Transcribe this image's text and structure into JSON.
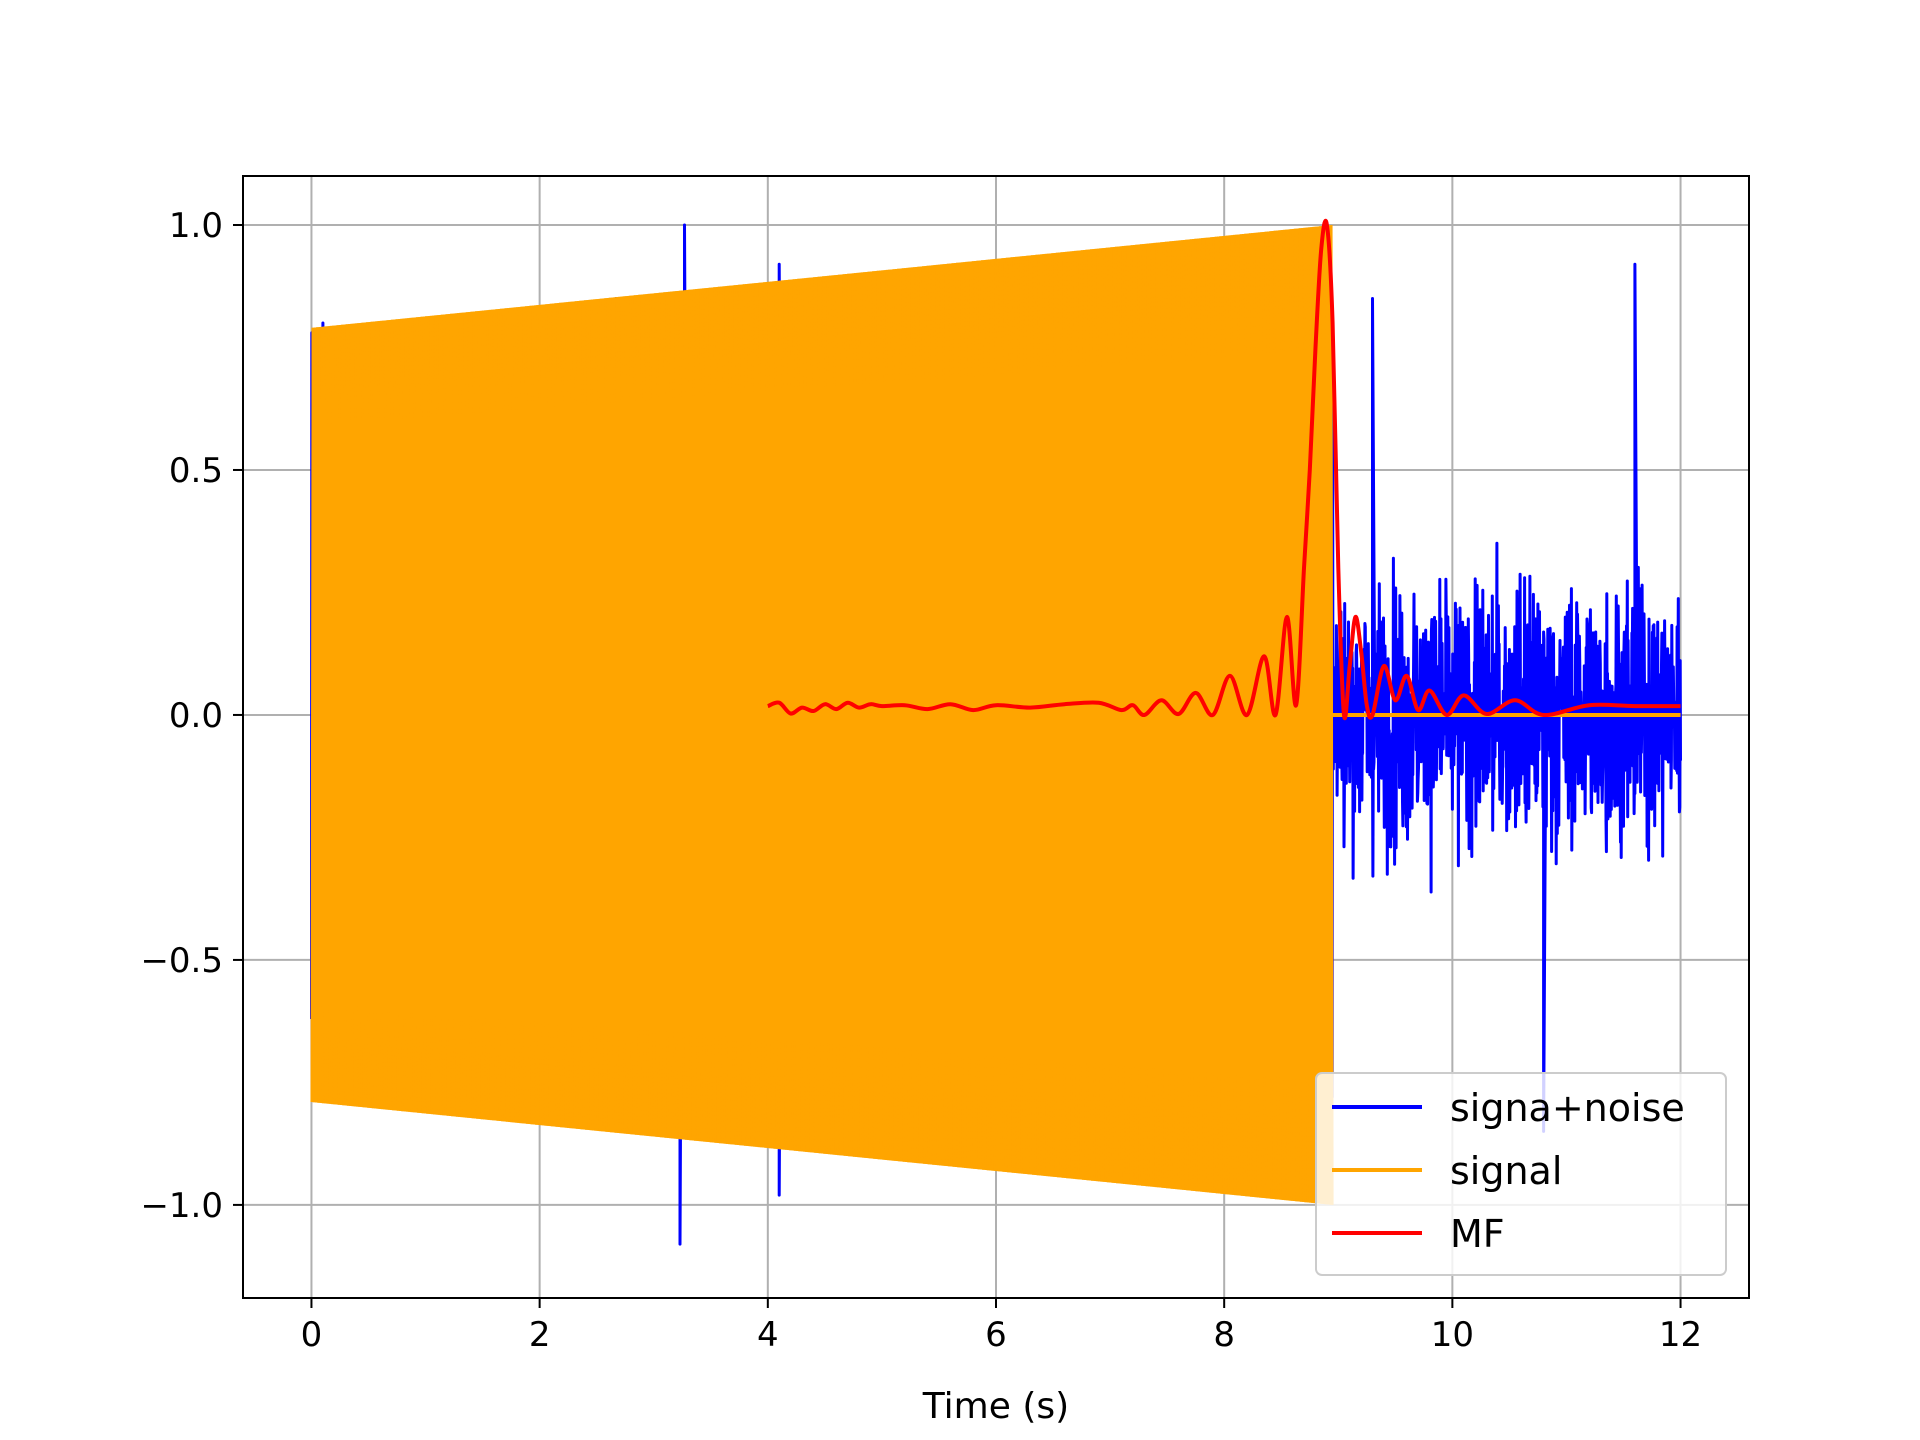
{
  "chart_data": {
    "type": "line",
    "title": "",
    "xlabel": "Time (s)",
    "ylabel": "",
    "xlim": [
      -0.6,
      12.6
    ],
    "ylim": [
      -1.19,
      1.1
    ],
    "xticks": [
      0,
      2,
      4,
      6,
      8,
      10,
      12
    ],
    "yticks": [
      -1.0,
      -0.5,
      0.0,
      0.5,
      1.0
    ],
    "xtick_labels": [
      "0",
      "2",
      "4",
      "6",
      "8",
      "10",
      "12"
    ],
    "ytick_labels": [
      "−1.0",
      "−0.5",
      "0.0",
      "0.5",
      "1.0"
    ],
    "grid": true,
    "legend_position": "lower-right",
    "colors": {
      "noise": "#0000ff",
      "signal": "#ffa500",
      "mf": "#ff0000"
    },
    "series": [
      {
        "name": "signa+noise",
        "color": "#0000ff",
        "kind": "noise",
        "x_range": [
          0,
          12
        ],
        "envelope_peaks": [
          [
            0.1,
            0.8
          ],
          [
            2.67,
            0.85
          ],
          [
            3.27,
            1.0
          ],
          [
            3.23,
            -1.08
          ],
          [
            4.1,
            0.92
          ],
          [
            4.1,
            -0.98
          ],
          [
            4.85,
            -0.9
          ],
          [
            9.3,
            0.85
          ],
          [
            10.8,
            -0.85
          ],
          [
            11.6,
            0.92
          ]
        ]
      },
      {
        "name": "signal",
        "color": "#ffa500",
        "kind": "chirp",
        "x_range": [
          0,
          8.95
        ],
        "amplitude_start": 0.79,
        "amplitude_end": 1.0,
        "zero_after": 12
      },
      {
        "name": "MF",
        "color": "#ff0000",
        "kind": "line",
        "x": [
          4.0,
          4.1,
          4.2,
          4.3,
          4.4,
          4.5,
          4.6,
          4.7,
          4.8,
          4.9,
          5.0,
          5.2,
          5.4,
          5.6,
          5.8,
          6.0,
          6.3,
          6.6,
          6.9,
          7.1,
          7.2,
          7.3,
          7.45,
          7.6,
          7.75,
          7.9,
          8.05,
          8.2,
          8.35,
          8.45,
          8.55,
          8.63,
          8.7,
          8.75,
          8.8,
          8.85,
          8.9,
          8.95,
          9.0,
          9.05,
          9.1,
          9.15,
          9.2,
          9.25,
          9.3,
          9.4,
          9.5,
          9.6,
          9.7,
          9.8,
          9.95,
          10.1,
          10.3,
          10.55,
          10.8,
          11.2,
          11.6,
          12.0
        ],
        "y": [
          0.018,
          0.025,
          0.003,
          0.015,
          0.008,
          0.022,
          0.012,
          0.025,
          0.015,
          0.022,
          0.018,
          0.02,
          0.012,
          0.022,
          0.01,
          0.02,
          0.015,
          0.022,
          0.025,
          0.01,
          0.02,
          0.0,
          0.03,
          0.002,
          0.045,
          0.0,
          0.08,
          0.0,
          0.12,
          0.0,
          0.2,
          0.02,
          0.3,
          0.5,
          0.75,
          0.95,
          1.0,
          0.8,
          0.3,
          0.0,
          0.1,
          0.2,
          0.13,
          0.02,
          0.0,
          0.1,
          0.03,
          0.08,
          0.01,
          0.05,
          0.0,
          0.04,
          0.002,
          0.03,
          0.0,
          0.02,
          0.018,
          0.018
        ]
      }
    ]
  }
}
